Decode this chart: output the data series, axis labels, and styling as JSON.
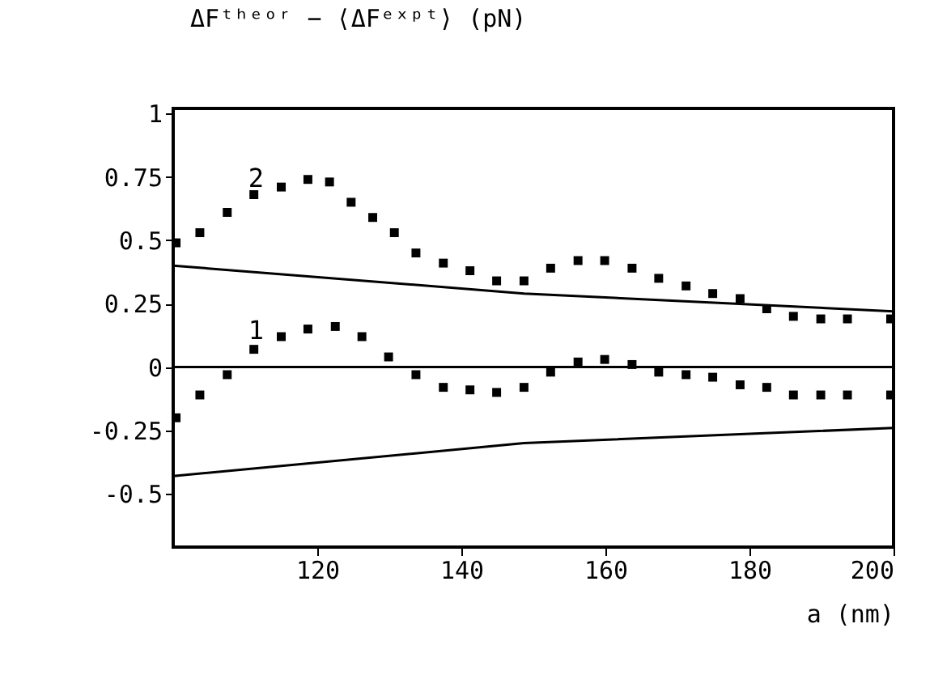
{
  "chart_data": {
    "type": "scatter",
    "ylabel": "ΔFᵗʰᵉᵒʳ − ⟨ΔFᵉˣᵖᵗ⟩ (pN)",
    "xlabel": "a (nm)",
    "xlim": [
      100,
      200
    ],
    "xticks": [
      120,
      140,
      160,
      180,
      200
    ],
    "ylim": [
      -0.71,
      1.02
    ],
    "yticks": [
      {
        "value": 1,
        "label": "1"
      },
      {
        "value": 0.75,
        "label": "0.75"
      },
      {
        "value": 0.5,
        "label": "0.5"
      },
      {
        "value": 0.25,
        "label": "0.25"
      },
      {
        "value": 0,
        "label": "0"
      },
      {
        "value": -0.25,
        "label": "-0.25"
      },
      {
        "value": -0.5,
        "label": "-0.5"
      }
    ],
    "grid": false,
    "marker": "square",
    "line_style": "solid",
    "ref_lines": [
      {
        "axis": "y",
        "value": 0,
        "color": "#000000"
      }
    ],
    "annotations": [
      {
        "text": "2",
        "x": 111.5,
        "y": 0.69
      },
      {
        "text": "1",
        "x": 111.5,
        "y": 0.09
      }
    ],
    "series": [
      {
        "color": "#000000",
        "x": [
          100.4,
          103.7,
          107.5,
          111.2,
          115,
          118.7,
          121.7,
          124.7,
          127.7,
          130.7,
          133.7,
          137.5,
          141.2,
          144.9,
          148.7,
          152.4,
          156.2,
          159.9,
          163.7,
          167.4,
          171.2,
          174.9,
          178.7,
          182.4,
          186.1,
          189.9,
          193.6,
          199.6
        ],
        "values": [
          0.49,
          0.53,
          0.61,
          0.68,
          0.71,
          0.74,
          0.73,
          0.65,
          0.59,
          0.53,
          0.45,
          0.41,
          0.38,
          0.34,
          0.34,
          0.39,
          0.42,
          0.42,
          0.39,
          0.35,
          0.32,
          0.29,
          0.27,
          0.23,
          0.2,
          0.19,
          0.19,
          0.19
        ]
      },
      {
        "type": "line",
        "marker": "none",
        "color": "#000000",
        "x": [
          100,
          148.7,
          200
        ],
        "values": [
          0.4,
          0.29,
          0.22
        ]
      },
      {
        "color": "#000000",
        "x": [
          100.4,
          103.7,
          107.5,
          111.2,
          115,
          118.7,
          122.5,
          126.2,
          129.9,
          133.7,
          137.5,
          141.2,
          144.9,
          148.7,
          152.4,
          156.2,
          159.9,
          163.7,
          167.4,
          171.2,
          174.9,
          178.7,
          182.4,
          186.1,
          189.9,
          193.6,
          199.6
        ],
        "values": [
          -0.2,
          -0.11,
          -0.03,
          0.07,
          0.12,
          0.15,
          0.16,
          0.12,
          0.04,
          -0.03,
          -0.08,
          -0.09,
          -0.1,
          -0.08,
          -0.02,
          0.02,
          0.03,
          0.01,
          -0.02,
          -0.03,
          -0.04,
          -0.07,
          -0.08,
          -0.11,
          -0.11,
          -0.11,
          -0.11
        ]
      },
      {
        "type": "line",
        "marker": "none",
        "color": "#000000",
        "x": [
          100,
          148.7,
          200
        ],
        "values": [
          -0.43,
          -0.3,
          -0.24
        ]
      }
    ]
  }
}
